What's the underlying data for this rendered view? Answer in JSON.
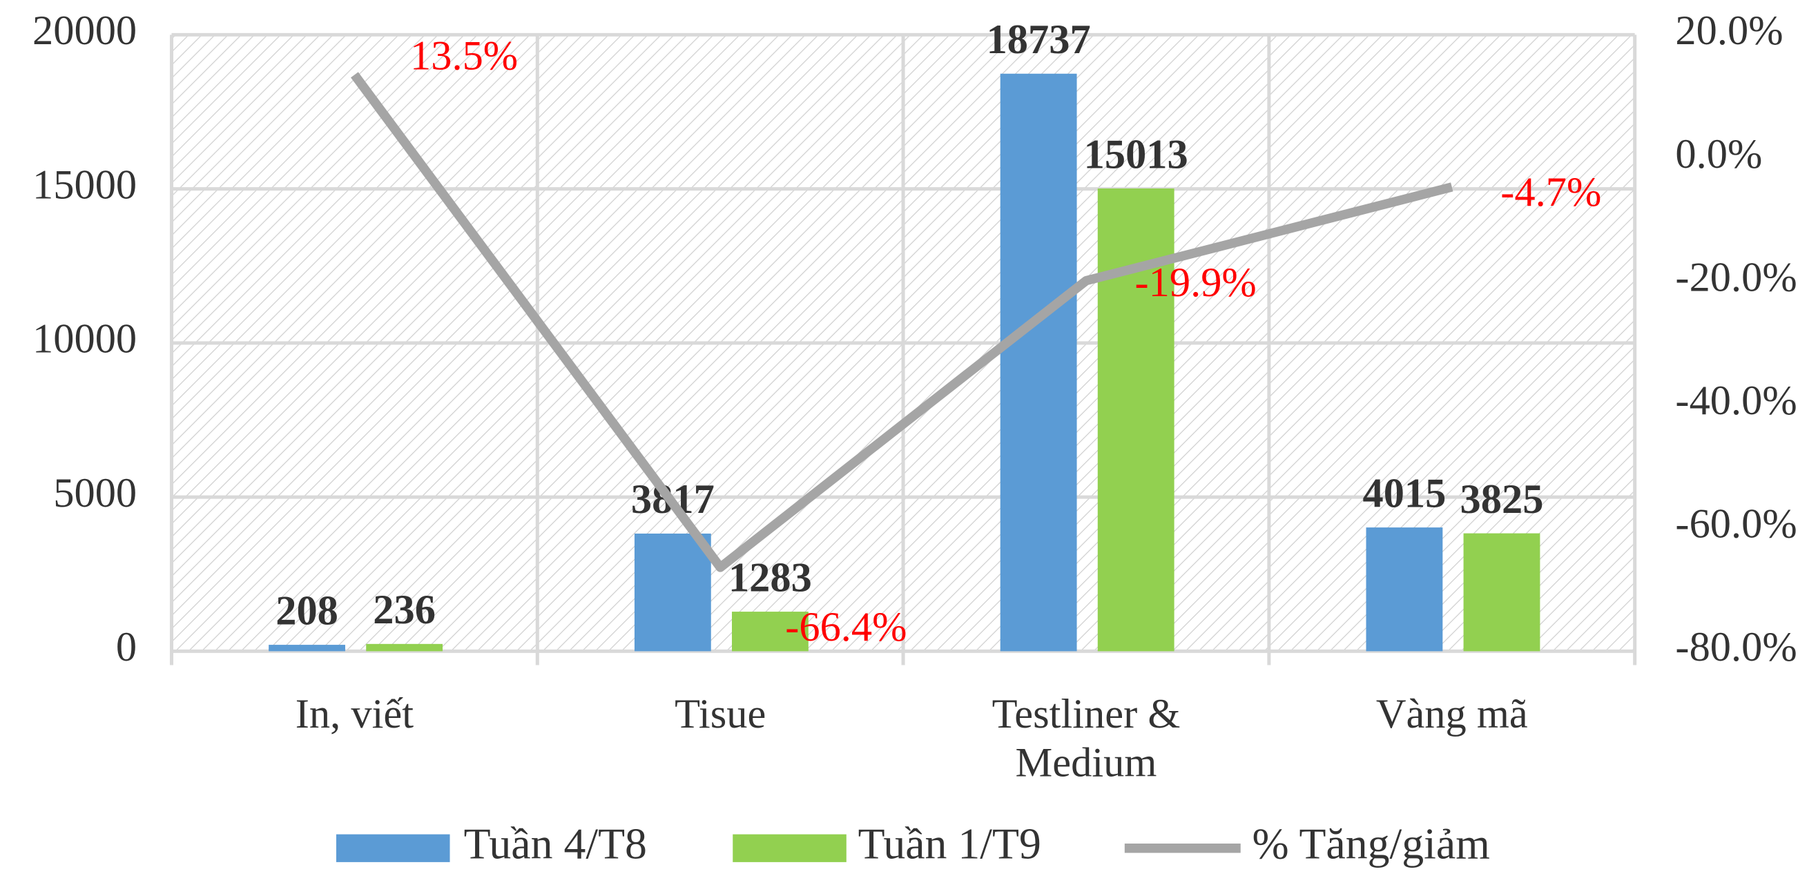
{
  "chart_data": {
    "type": "bar",
    "categories": [
      "In, viết",
      "Tisue",
      "Testliner & Medium",
      "Vàng mã"
    ],
    "series": [
      {
        "name": "Tuần 4/T8",
        "color": "#5b9bd5",
        "values": [
          208,
          3817,
          18737,
          4015
        ]
      },
      {
        "name": "Tuần 1/T9",
        "color": "#92d050",
        "values": [
          236,
          1283,
          15013,
          3825
        ]
      },
      {
        "name": "% Tăng/giảm",
        "type": "line",
        "axis": "y2",
        "color": "#a5a5a5",
        "values": [
          13.5,
          -66.4,
          -19.9,
          -4.7
        ],
        "value_labels": [
          "13.5%",
          "-66.4%",
          "-19.9%",
          "-4.7%"
        ]
      }
    ],
    "ylim": [
      0,
      20000
    ],
    "yticks": [
      0,
      5000,
      10000,
      15000,
      20000
    ],
    "y2lim": [
      -80,
      20
    ],
    "y2ticks": [
      {
        "value": -80,
        "label": "-80.0%"
      },
      {
        "value": -60,
        "label": "-60.0%"
      },
      {
        "value": -40,
        "label": "-40.0%"
      },
      {
        "value": -20,
        "label": "-20.0%"
      },
      {
        "value": 0,
        "label": "0.0%"
      },
      {
        "value": 20,
        "label": "20.0%"
      }
    ],
    "grid": true,
    "legend": "bottom"
  }
}
